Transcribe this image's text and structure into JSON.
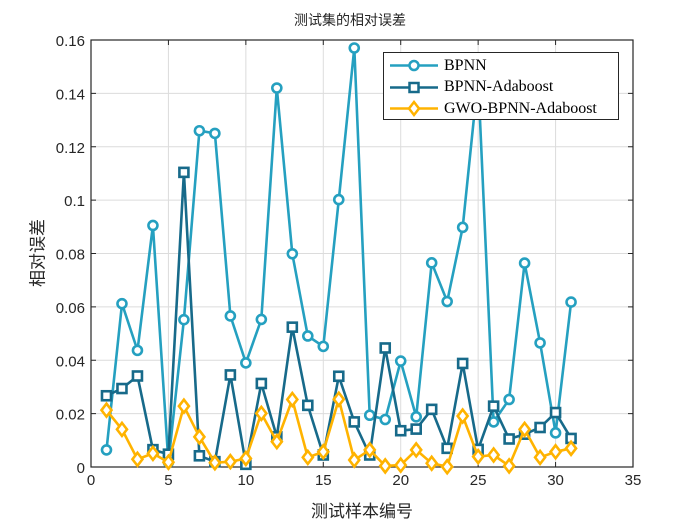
{
  "figure": {
    "title": "测试集的相对误差",
    "xlabel": "测试样本编号",
    "ylabel": "相对误差"
  },
  "legend": {
    "items": [
      {
        "label": "BPNN",
        "color": "#25A0C0",
        "marker": "circle"
      },
      {
        "label": "BPNN-Adaboost",
        "color": "#176A8A",
        "marker": "square"
      },
      {
        "label": "GWO-BPNN-Adaboost",
        "color": "#FFB300",
        "marker": "diamond"
      }
    ]
  },
  "chart_data": {
    "type": "line",
    "title": "测试集的相对误差",
    "xlabel": "测试样本编号",
    "ylabel": "相对误差",
    "xlim": [
      0,
      35
    ],
    "ylim": [
      0,
      0.16
    ],
    "xticks": [
      0,
      5,
      10,
      15,
      20,
      25,
      30,
      35
    ],
    "yticks": [
      0,
      0.02,
      0.04,
      0.06,
      0.08,
      0.1,
      0.12,
      0.14,
      0.16
    ],
    "xtick_labels": [
      "0",
      "5",
      "10",
      "15",
      "20",
      "25",
      "30",
      "35"
    ],
    "ytick_labels": [
      "0",
      "0.02",
      "0.04",
      "0.06",
      "0.08",
      "0.1",
      "0.12",
      "0.14",
      "0.16"
    ],
    "grid": true,
    "legend_position": "northeast",
    "x": [
      1,
      2,
      3,
      4,
      5,
      6,
      7,
      8,
      9,
      10,
      11,
      12,
      13,
      14,
      15,
      16,
      17,
      18,
      19,
      20,
      21,
      22,
      23,
      24,
      25,
      26,
      27,
      28,
      29,
      30,
      31
    ],
    "series": [
      {
        "name": "BPNN",
        "color": "#25A0C0",
        "marker": "circle",
        "values": [
          0.0064,
          0.0612,
          0.0437,
          0.0905,
          0.0018,
          0.0552,
          0.126,
          0.125,
          0.0566,
          0.039,
          0.0553,
          0.142,
          0.0799,
          0.0491,
          0.0452,
          0.1002,
          0.157,
          0.0194,
          0.0178,
          0.0397,
          0.0188,
          0.0765,
          0.062,
          0.0898,
          0.146,
          0.0169,
          0.0253,
          0.0764,
          0.0465,
          0.0128,
          0.0618
        ]
      },
      {
        "name": "BPNN-Adaboost",
        "color": "#176A8A",
        "marker": "square",
        "values": [
          0.0267,
          0.0294,
          0.0341,
          0.0065,
          0.0048,
          0.1104,
          0.0042,
          0.002,
          0.0345,
          0.001,
          0.0313,
          0.0113,
          0.0524,
          0.0231,
          0.0045,
          0.034,
          0.0169,
          0.0045,
          0.0446,
          0.0136,
          0.0142,
          0.0216,
          0.007,
          0.0388,
          0.0066,
          0.0228,
          0.0105,
          0.0123,
          0.0148,
          0.0204,
          0.0107
        ]
      },
      {
        "name": "GWO-BPNN-Adaboost",
        "color": "#FFB300",
        "marker": "diamond",
        "values": [
          0.0213,
          0.0141,
          0.0029,
          0.0051,
          0.0018,
          0.0228,
          0.0113,
          0.0016,
          0.002,
          0.0032,
          0.0201,
          0.0095,
          0.0253,
          0.0036,
          0.0057,
          0.0254,
          0.0026,
          0.0064,
          0.0004,
          0.0007,
          0.0064,
          0.0014,
          0.0001,
          0.0191,
          0.0039,
          0.0045,
          0.0004,
          0.0141,
          0.0036,
          0.0057,
          0.007
        ]
      }
    ]
  }
}
